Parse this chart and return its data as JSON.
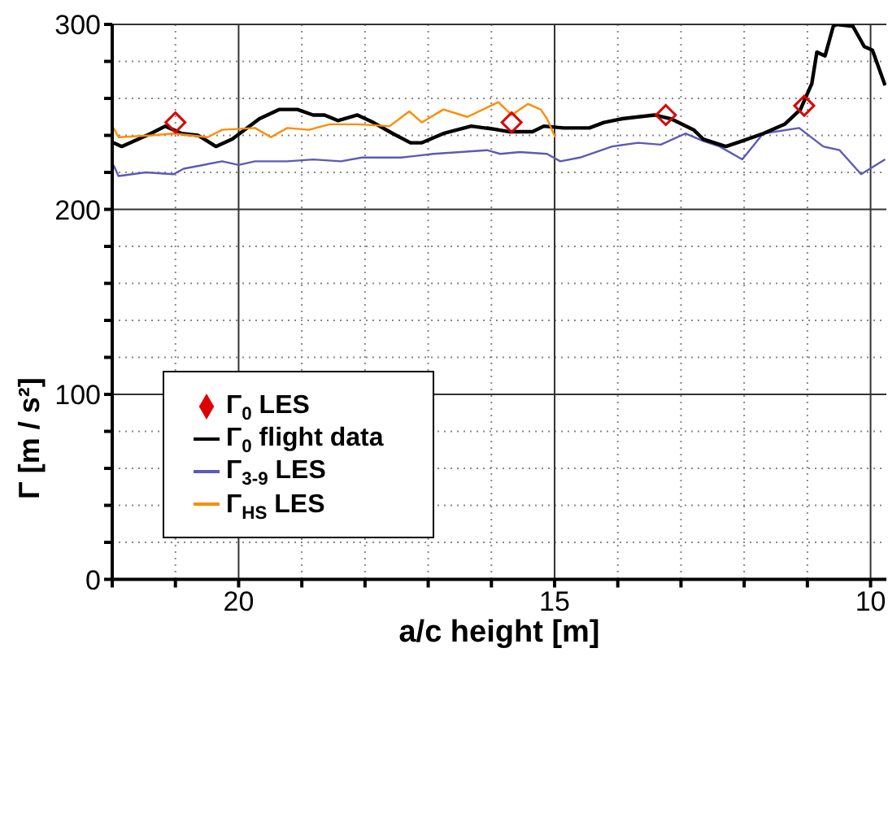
{
  "chart_data": {
    "type": "line",
    "xlabel": "a/c height [m]",
    "ylabel": "Γ  [m / s²]",
    "xlim": [
      22,
      9.75
    ],
    "xticks": [
      {
        "value": 22,
        "label": null
      },
      {
        "value": 21,
        "label": null
      },
      20,
      {
        "value": 19,
        "label": null
      },
      {
        "value": 18,
        "label": null
      },
      {
        "value": 17,
        "label": null
      },
      {
        "value": 16,
        "label": null
      },
      15,
      {
        "value": 14,
        "label": null
      },
      {
        "value": 13,
        "label": null
      },
      {
        "value": 12,
        "label": null
      },
      {
        "value": 11,
        "label": null
      },
      10
    ],
    "ylim": [
      0,
      300
    ],
    "yticks": [
      0,
      {
        "value": 20,
        "label": null
      },
      {
        "value": 40,
        "label": null
      },
      {
        "value": 60,
        "label": null
      },
      {
        "value": 80,
        "label": null
      },
      100,
      {
        "value": 120,
        "label": null
      },
      {
        "value": 140,
        "label": null
      },
      {
        "value": 160,
        "label": null
      },
      {
        "value": 180,
        "label": null
      },
      200,
      {
        "value": 220,
        "label": null
      },
      {
        "value": 240,
        "label": null
      },
      {
        "value": 260,
        "label": null
      },
      {
        "value": 280,
        "label": null
      },
      300
    ],
    "grid": true,
    "legend": "left",
    "series": [
      {
        "name": "Γ$_{3-9}$ LES",
        "color": "#5b5bb5",
        "x": [
          21.98,
          21.9,
          21.47,
          21.03,
          20.87,
          20.26,
          20.0,
          19.74,
          19.23,
          18.82,
          18.38,
          18.05,
          17.43,
          16.92,
          16.07,
          15.86,
          15.55,
          15.12,
          14.91,
          14.6,
          14.09,
          13.68,
          13.32,
          12.93,
          12.65,
          12.39,
          12.03,
          11.7,
          11.13,
          10.75,
          10.49,
          10.15,
          9.77
        ],
        "values": [
          224,
          218,
          220,
          219,
          222,
          226,
          224,
          226,
          226,
          227,
          226,
          228,
          228,
          230,
          232,
          230,
          231,
          230,
          226,
          228,
          234,
          236,
          235,
          241,
          237,
          234,
          227,
          241,
          244,
          234,
          232,
          219,
          227
        ]
      },
      {
        "name": "Γ$_{0}$ flight data",
        "color": "#000000",
        "x": [
          21.98,
          21.85,
          21.39,
          21.16,
          20.9,
          20.64,
          20.36,
          20.1,
          19.67,
          19.36,
          19.07,
          18.82,
          18.64,
          18.43,
          18.12,
          17.87,
          17.56,
          17.28,
          17.1,
          16.76,
          16.32,
          15.89,
          16.07,
          15.73,
          15.35,
          15.17,
          14.86,
          14.45,
          14.22,
          13.93,
          13.68,
          13.42,
          13.16,
          12.8,
          12.65,
          12.29,
          12.03,
          11.7,
          11.36,
          11.11,
          10.93,
          10.85,
          10.72,
          10.59,
          10.54,
          10.28,
          10.1,
          9.97,
          9.77
        ],
        "values": [
          236,
          234,
          241,
          245,
          241,
          240,
          234,
          238,
          249,
          254,
          254,
          251,
          251,
          248,
          251,
          247,
          241,
          236,
          236,
          241,
          245,
          243,
          244,
          242,
          242,
          245,
          244,
          244,
          247,
          249,
          250,
          251,
          249,
          243,
          238,
          234,
          237,
          241,
          246,
          254,
          268,
          285,
          283,
          299,
          300,
          299,
          288,
          286,
          267
        ]
      },
      {
        "name": "Γ$_{0}$ LES",
        "color": "#dd0000",
        "type": "scatter",
        "marker": "diamond",
        "x": [
          21.0,
          15.68,
          13.24,
          11.05
        ],
        "values": [
          247,
          247,
          251,
          256
        ]
      },
      {
        "name": "Γ$_{HS}$ LES",
        "color": "#ff8c00",
        "x": [
          21.98,
          21.9,
          21.39,
          21.03,
          20.75,
          20.49,
          20.26,
          19.74,
          19.49,
          19.23,
          18.89,
          18.56,
          18.12,
          17.61,
          17.3,
          17.1,
          16.76,
          16.38,
          15.89,
          15.68,
          15.42,
          15.22,
          15.12,
          14.99
        ],
        "values": [
          244,
          239,
          240,
          241,
          240,
          239,
          243,
          244,
          239,
          244,
          243,
          246,
          246,
          245,
          253,
          247,
          254,
          250,
          258,
          251,
          257,
          254,
          249,
          239
        ]
      }
    ]
  }
}
